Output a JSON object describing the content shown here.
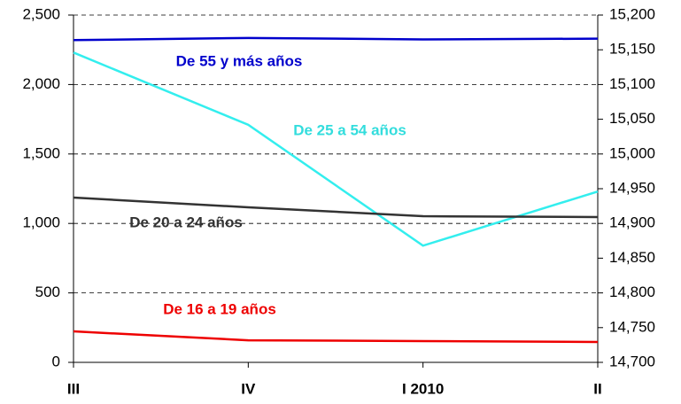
{
  "chart_data": {
    "type": "line",
    "categories": [
      "III",
      "IV",
      "I 2010",
      "II"
    ],
    "series": [
      {
        "name": "De 55 y más años",
        "color": "#0000cc",
        "values": [
          2320,
          2335,
          2325,
          2330
        ]
      },
      {
        "name": "De 25 a 54 años",
        "color": "#33eeee",
        "axis": "y2",
        "values": [
          15146,
          15042,
          14868,
          14946
        ]
      },
      {
        "name": "De 20 a 24 años",
        "color": "#333333",
        "values": [
          1186,
          1116,
          1052,
          1046
        ]
      },
      {
        "name": "De 16 a 19 años",
        "color": "#ee0000",
        "values": [
          223,
          159,
          153,
          147
        ]
      }
    ],
    "ylim": [
      0,
      2500
    ],
    "yticks": [
      0,
      500,
      {
        "value": 1000,
        "label": "1,000"
      },
      {
        "value": 1500,
        "label": "1,500"
      },
      {
        "value": 2000,
        "label": "2,000"
      },
      {
        "value": 2500,
        "label": "2,500"
      }
    ],
    "y2lim": [
      14700,
      15200
    ],
    "y2ticks": [
      {
        "value": 14700,
        "label": "14,700"
      },
      {
        "value": 14750,
        "label": "14,750"
      },
      {
        "value": 14800,
        "label": "14,800"
      },
      {
        "value": 14850,
        "label": "14,850"
      },
      {
        "value": 14900,
        "label": "14,900"
      },
      {
        "value": 14950,
        "label": "14,950"
      },
      {
        "value": 15000,
        "label": "15,000"
      },
      {
        "value": 15050,
        "label": "15,050"
      },
      {
        "value": 15100,
        "label": "15,100"
      },
      {
        "value": 15150,
        "label": "15,150"
      },
      {
        "value": 15200,
        "label": "15,200"
      }
    ],
    "grid": true
  }
}
